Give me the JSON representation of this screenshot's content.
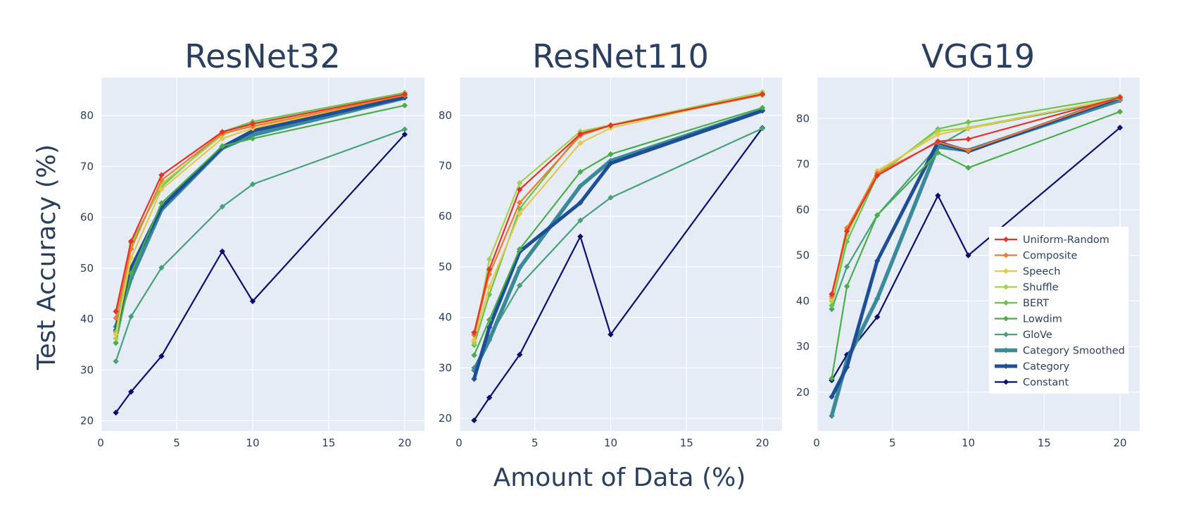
{
  "figure": {
    "ylabel": "Test Accuracy (%)",
    "xlabel": "Amount of Data (%)"
  },
  "legend": {
    "placement": "inside-right of third panel",
    "items": [
      {
        "name": "Uniform-Random",
        "color": "#e5322a"
      },
      {
        "name": "Composite",
        "color": "#f07a2d"
      },
      {
        "name": "Speech",
        "color": "#e5c84a"
      },
      {
        "name": "Shuffle",
        "color": "#a6d14b"
      },
      {
        "name": "BERT",
        "color": "#6cc34a"
      },
      {
        "name": "Lowdim",
        "color": "#49ae4a"
      },
      {
        "name": "GloVe",
        "color": "#46a17a"
      },
      {
        "name": "Category Smoothed",
        "color": "#3a8a9a"
      },
      {
        "name": "Category",
        "color": "#1d4e96"
      },
      {
        "name": "Constant",
        "color": "#0a0f6e"
      }
    ]
  },
  "chart_data": [
    {
      "type": "line",
      "title": "ResNet32",
      "x": [
        1,
        2,
        4,
        8,
        10,
        20
      ],
      "xlim": [
        0,
        21.3
      ],
      "ylim": [
        18,
        87.5
      ],
      "xticks": [
        0,
        5,
        10,
        15,
        20
      ],
      "yticks": [
        20,
        30,
        40,
        50,
        60,
        70,
        80
      ],
      "grid": true,
      "series": [
        {
          "name": "Uniform-Random",
          "values": [
            41.5,
            55.3,
            68.3,
            76.8,
            78.4,
            84.2
          ]
        },
        {
          "name": "Composite",
          "values": [
            40.2,
            53.8,
            67.3,
            76.5,
            77.9,
            84.0
          ]
        },
        {
          "name": "Speech",
          "values": [
            37.0,
            52.0,
            65.5,
            75.5,
            77.5,
            84.1
          ]
        },
        {
          "name": "Shuffle",
          "values": [
            36.2,
            54.4,
            66.5,
            76.2,
            78.3,
            84.3
          ]
        },
        {
          "name": "BERT",
          "values": [
            37.5,
            55.0,
            66.0,
            76.8,
            78.8,
            84.5
          ]
        },
        {
          "name": "Lowdim",
          "values": [
            35.3,
            49.0,
            62.8,
            74.0,
            75.5,
            82.0
          ]
        },
        {
          "name": "GloVe",
          "values": [
            31.7,
            40.5,
            50.1,
            62.1,
            66.5,
            77.3
          ]
        },
        {
          "name": "Category Smoothed",
          "values": [
            38.5,
            48.0,
            61.5,
            73.6,
            76.2,
            83.5
          ]
        },
        {
          "name": "Category",
          "values": [
            37.8,
            50.0,
            62.0,
            73.8,
            77.0,
            83.6
          ]
        },
        {
          "name": "Constant",
          "values": [
            21.6,
            25.7,
            32.7,
            53.3,
            43.5,
            76.3
          ]
        }
      ]
    },
    {
      "type": "line",
      "title": "ResNet110",
      "x": [
        1,
        2,
        4,
        8,
        10,
        20
      ],
      "xlim": [
        0,
        21.3
      ],
      "ylim": [
        17.5,
        87.5
      ],
      "xticks": [
        0,
        5,
        10,
        15,
        20
      ],
      "yticks": [
        20,
        30,
        40,
        50,
        60,
        70,
        80
      ],
      "grid": true,
      "series": [
        {
          "name": "Uniform-Random",
          "values": [
            37.0,
            49.5,
            65.3,
            76.3,
            78.0,
            84.2
          ]
        },
        {
          "name": "Composite",
          "values": [
            36.5,
            48.5,
            62.7,
            76.0,
            78.0,
            84.1
          ]
        },
        {
          "name": "Speech",
          "values": [
            35.5,
            46.0,
            60.5,
            74.5,
            77.5,
            84.3
          ]
        },
        {
          "name": "Shuffle",
          "values": [
            35.0,
            51.5,
            66.6,
            76.8,
            78.1,
            84.6
          ]
        },
        {
          "name": "BERT",
          "values": [
            34.5,
            44.5,
            61.5,
            76.5,
            78.0,
            84.0
          ]
        },
        {
          "name": "Lowdim",
          "values": [
            32.5,
            39.5,
            53.5,
            68.8,
            72.3,
            81.5
          ]
        },
        {
          "name": "GloVe",
          "values": [
            30.0,
            36.0,
            46.3,
            59.2,
            63.7,
            77.4
          ]
        },
        {
          "name": "Category Smoothed",
          "values": [
            29.5,
            35.5,
            49.8,
            66.0,
            71.0,
            81.0
          ]
        },
        {
          "name": "Category",
          "values": [
            27.8,
            38.0,
            53.0,
            62.7,
            70.5,
            80.9
          ]
        },
        {
          "name": "Constant",
          "values": [
            19.6,
            24.1,
            32.6,
            56.0,
            36.6,
            77.5
          ]
        }
      ]
    },
    {
      "type": "line",
      "title": "VGG19",
      "x": [
        1,
        2,
        4,
        8,
        10,
        20
      ],
      "xlim": [
        0,
        21.3
      ],
      "ylim": [
        11.5,
        89
      ],
      "xticks": [
        0,
        5,
        10,
        15,
        20
      ],
      "yticks": [
        20,
        30,
        40,
        50,
        60,
        70,
        80
      ],
      "grid": true,
      "series": [
        {
          "name": "Uniform-Random",
          "values": [
            41.5,
            55.3,
            67.5,
            75.0,
            75.5,
            84.6
          ]
        },
        {
          "name": "Composite",
          "values": [
            41.0,
            56.0,
            68.0,
            74.8,
            73.0,
            84.7
          ]
        },
        {
          "name": "Speech",
          "values": [
            40.5,
            55.5,
            68.5,
            76.5,
            77.8,
            84.5
          ]
        },
        {
          "name": "Shuffle",
          "values": [
            40.0,
            54.5,
            68.0,
            77.2,
            78.0,
            84.4
          ]
        },
        {
          "name": "BERT",
          "values": [
            39.0,
            53.0,
            67.5,
            77.7,
            79.2,
            84.8
          ]
        },
        {
          "name": "Lowdim",
          "values": [
            23.0,
            43.2,
            58.8,
            72.5,
            69.2,
            81.5
          ]
        },
        {
          "name": "GloVe",
          "values": [
            38.2,
            47.5,
            58.8,
            74.0,
            77.8,
            84.2
          ]
        },
        {
          "name": "Category Smoothed",
          "values": [
            14.8,
            27.0,
            40.5,
            73.8,
            73.0,
            84.0
          ]
        },
        {
          "name": "Category",
          "values": [
            19.0,
            25.5,
            48.8,
            74.8,
            72.8,
            84.6
          ]
        },
        {
          "name": "Constant",
          "values": [
            22.6,
            28.2,
            36.5,
            63.1,
            50.0,
            78.0
          ]
        }
      ]
    }
  ]
}
